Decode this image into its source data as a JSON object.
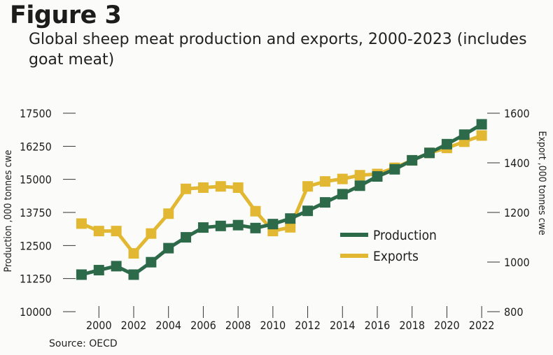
{
  "figure": {
    "heading": "Figure 3",
    "title": "Global sheep meat production and exports, 2000-2023 (includes goat meat)",
    "source": "Source: OECD"
  },
  "chart_data": {
    "type": "line",
    "title": "Global sheep meat production and exports, 2000-2023 (includes goat meat)",
    "x": [
      1999,
      2000,
      2001,
      2002,
      2003,
      2004,
      2005,
      2006,
      2007,
      2008,
      2009,
      2010,
      2011,
      2012,
      2013,
      2014,
      2015,
      2016,
      2017,
      2018,
      2019,
      2020,
      2021,
      2022
    ],
    "x_tick_labels": [
      "2000",
      "2002",
      "2004",
      "2006",
      "2008",
      "2010",
      "2012",
      "2014",
      "2016",
      "2018",
      "2020",
      "2022"
    ],
    "x_ticks": [
      2000,
      2002,
      2004,
      2006,
      2008,
      2010,
      2012,
      2014,
      2016,
      2018,
      2020,
      2022
    ],
    "xlim": [
      1998.5,
      2022.8
    ],
    "y_left": {
      "label": "Production ,000 tonnes cwe",
      "lim": [
        10000,
        17500
      ],
      "ticks": [
        10000,
        11250,
        12500,
        13750,
        15000,
        16250,
        17500
      ],
      "tick_labels": [
        "10000",
        "11250",
        "12500",
        "13750",
        "15000",
        "16250",
        "17500"
      ]
    },
    "y_right": {
      "label": "Export ,000 tonnes cwe",
      "lim": [
        800,
        1600
      ],
      "ticks": [
        800,
        1000,
        1200,
        1400,
        1600
      ],
      "tick_labels": [
        "800",
        "1000",
        "1200",
        "1400",
        "1600"
      ]
    },
    "series": [
      {
        "name": "Production",
        "axis": "left",
        "color": "#2d6a4a",
        "values": [
          11400,
          11570,
          11720,
          11400,
          11870,
          12400,
          12810,
          13180,
          13240,
          13270,
          13160,
          13310,
          13520,
          13810,
          14130,
          14440,
          14760,
          15110,
          15380,
          15720,
          16000,
          16330,
          16690,
          17080
        ]
      },
      {
        "name": "Exports",
        "axis": "right",
        "color": "#e2b833",
        "values": [
          1155,
          1125,
          1125,
          1035,
          1115,
          1195,
          1295,
          1300,
          1305,
          1300,
          1205,
          1125,
          1140,
          1305,
          1325,
          1335,
          1350,
          1355,
          1380,
          1410,
          1440,
          1460,
          1485,
          1510
        ]
      }
    ],
    "legend": [
      "Production",
      "Exports"
    ],
    "legend_position": "right-center",
    "grid": false
  }
}
